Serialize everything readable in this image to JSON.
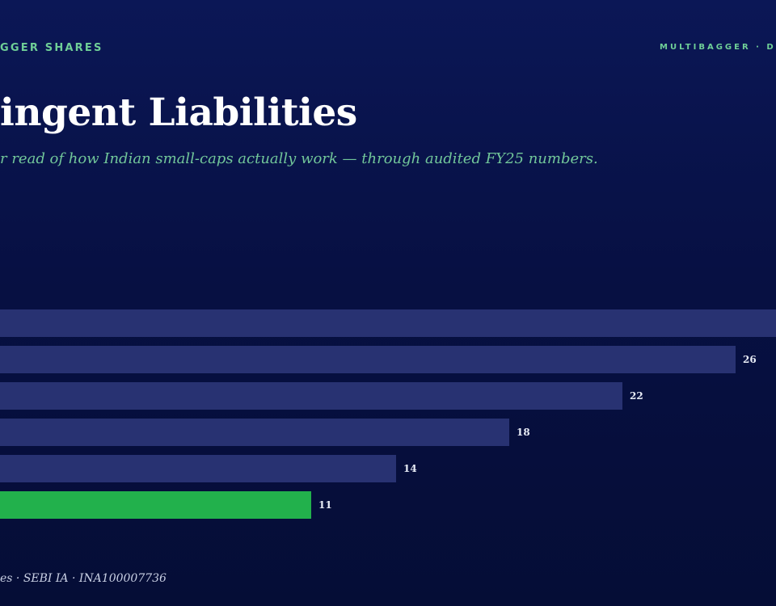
{
  "header": {
    "brand_left": "GGER SHARES",
    "brand_right": "MULTIBAGGER · D"
  },
  "title": "ingent Liabilities",
  "subtitle": "r read of how Indian small-caps actually work — through audited FY25 numbers.",
  "footer": "es · SEBI IA · INA100007736",
  "colors": {
    "bar_default": "#283272",
    "bar_highlight": "#22b14c",
    "label": "#e8ecf6",
    "accent": "#6fcf97"
  },
  "chart_data": {
    "type": "bar",
    "orientation": "horizontal",
    "title": "",
    "xlabel": "",
    "ylabel": "",
    "categories": [
      "",
      "",
      "",
      "",
      "",
      ""
    ],
    "values": [
      30,
      26,
      22,
      18,
      14,
      11
    ],
    "value_labels": [
      "",
      "26",
      "22",
      "18",
      "14",
      "11"
    ],
    "highlight_index": 5,
    "xlim": [
      0,
      30
    ],
    "grid": false
  }
}
